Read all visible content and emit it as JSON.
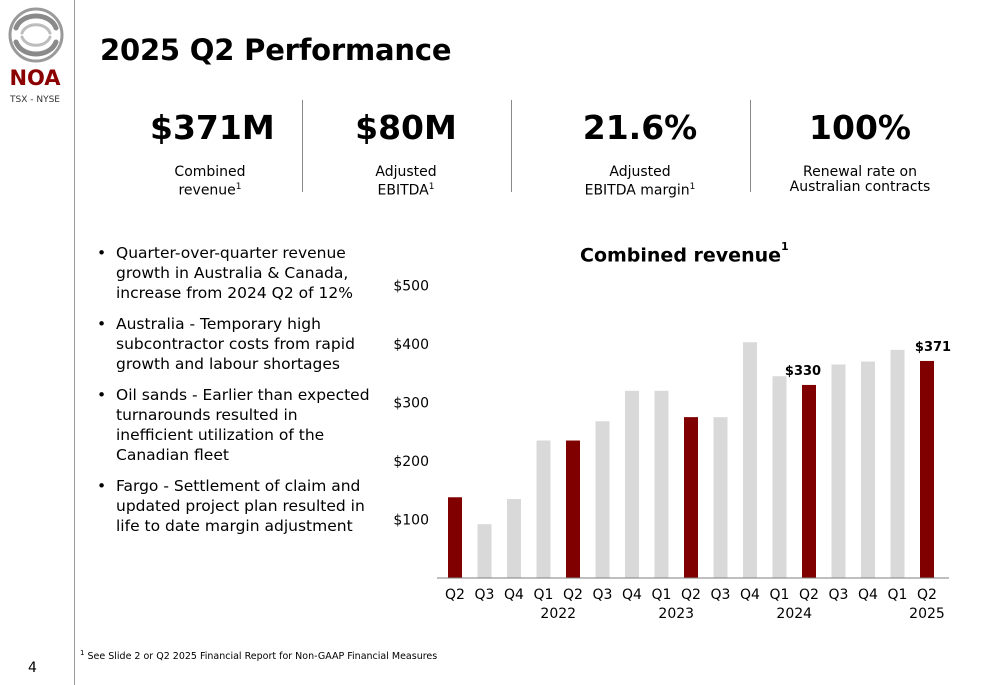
{
  "logo": {
    "name": "NOA",
    "exchange": "TSX - NYSE"
  },
  "slide_number": "4",
  "title": "2025 Q2 Performance",
  "kpis": [
    {
      "value": "$371M",
      "label_line1": "Combined",
      "label_line2": "revenue",
      "sup": "1"
    },
    {
      "value": "$80M",
      "label_line1": "Adjusted",
      "label_line2": "EBITDA",
      "sup": "1"
    },
    {
      "value": "21.6%",
      "label_line1": "Adjusted",
      "label_line2": "EBITDA margin",
      "sup": "1"
    },
    {
      "value": "100%",
      "label_line1": "Renewal rate on",
      "label_line2": "Australian contracts",
      "sup": ""
    }
  ],
  "bullets": [
    "Quarter-over-quarter revenue growth in Australia & Canada, increase from 2024 Q2 of 12%",
    "Australia - Temporary high subcontractor costs from rapid growth and labour shortages",
    "Oil sands - Earlier than expected turnarounds resulted in inefficient utilization of the Canadian fleet",
    "Fargo - Settlement of claim and updated project plan resulted in life to date margin adjustment"
  ],
  "footnote": {
    "sup": "1",
    "text": " See Slide 2 or Q2 2025 Financial Report for Non-GAAP Financial Measures"
  },
  "colors": {
    "highlight": "#800000",
    "bar": "#d9d9d9",
    "logo_red": "#8b0000"
  },
  "chart_data": {
    "type": "bar",
    "title": "Combined revenue",
    "title_sup": "1",
    "categories": [
      "Q2",
      "Q3",
      "Q4",
      "Q1",
      "Q2",
      "Q3",
      "Q4",
      "Q1",
      "Q2",
      "Q3",
      "Q4",
      "Q1",
      "Q2",
      "Q3",
      "Q4",
      "Q1",
      "Q2"
    ],
    "values": [
      138,
      92,
      135,
      235,
      235,
      268,
      320,
      320,
      275,
      275,
      403,
      345,
      330,
      365,
      370,
      390,
      371
    ],
    "highlighted": [
      true,
      false,
      false,
      false,
      true,
      false,
      false,
      false,
      true,
      false,
      false,
      false,
      true,
      false,
      false,
      false,
      true
    ],
    "data_labels": [
      null,
      null,
      null,
      null,
      null,
      null,
      null,
      null,
      null,
      null,
      null,
      null,
      "$330",
      null,
      null,
      null,
      "$371"
    ],
    "year_labels": [
      {
        "label": "2022",
        "index": 3.5
      },
      {
        "label": "2023",
        "index": 7.5
      },
      {
        "label": "2024",
        "index": 11.5
      },
      {
        "label": "2025",
        "index": 16
      }
    ],
    "yticks": [
      {
        "value": 100,
        "label": "$100"
      },
      {
        "value": 200,
        "label": "$200"
      },
      {
        "value": 300,
        "label": "$300"
      },
      {
        "value": 400,
        "label": "$400"
      },
      {
        "value": 500,
        "label": "$500"
      }
    ],
    "ylim": [
      0,
      500
    ],
    "grid": false,
    "legend": "none"
  }
}
